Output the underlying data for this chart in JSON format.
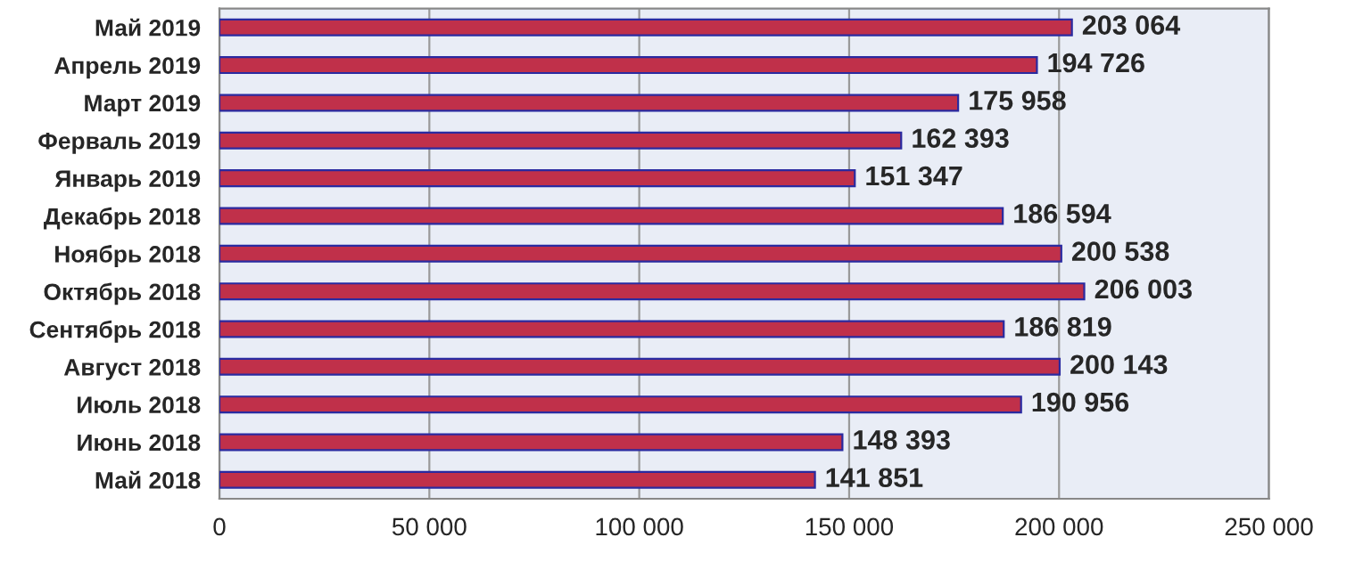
{
  "chart_data": {
    "type": "bar",
    "orientation": "horizontal",
    "categories": [
      "Май 2019",
      "Апрель 2019",
      "Март 2019",
      "Ферваль 2019",
      "Январь 2019",
      "Декабрь 2018",
      "Ноябрь 2018",
      "Октябрь 2018",
      "Сентябрь 2018",
      "Август 2018",
      "Июль 2018",
      "Июнь 2018",
      "Май 2018"
    ],
    "values": [
      203064,
      194726,
      175958,
      162393,
      151347,
      186594,
      200538,
      206003,
      186819,
      200143,
      190956,
      148393,
      141851
    ],
    "value_labels": [
      "203 064",
      "194 726",
      "175 958",
      "162 393",
      "151 347",
      "186 594",
      "200 538",
      "206 003",
      "186 819",
      "200 143",
      "190 956",
      "148 393",
      "141 851"
    ],
    "color": "#c0304a",
    "xlim": [
      0,
      250000
    ],
    "xticks": [
      0,
      {
        "value": 50000,
        "label": "50 000"
      },
      {
        "value": 100000,
        "label": "100 000"
      },
      {
        "value": 150000,
        "label": "150 000"
      },
      {
        "value": 200000,
        "label": "200 000"
      },
      {
        "value": 250000,
        "label": "250 000"
      }
    ],
    "grid": "x"
  }
}
